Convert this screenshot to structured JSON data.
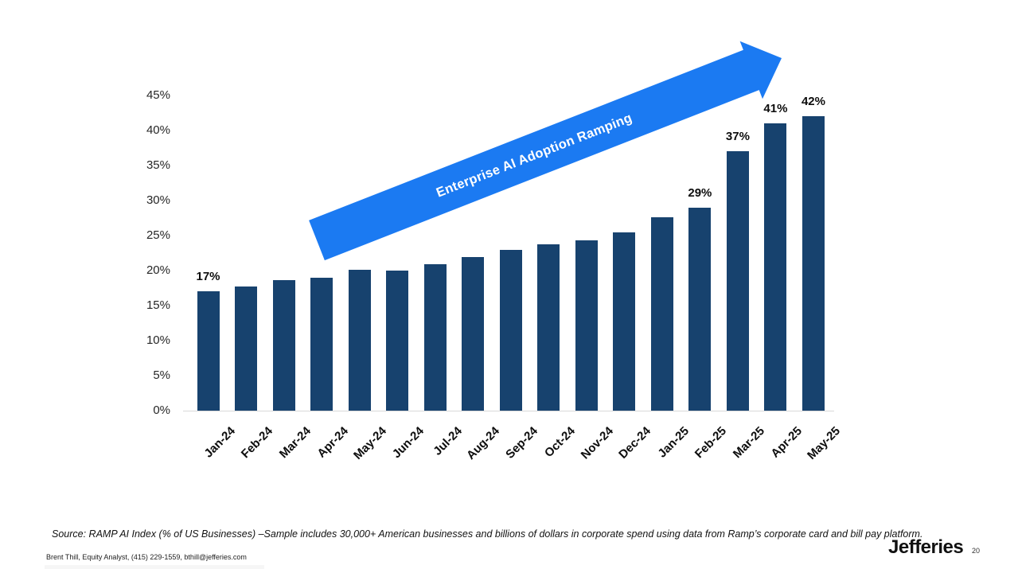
{
  "chart_data": {
    "type": "bar",
    "title": "",
    "xlabel": "",
    "ylabel": "",
    "categories": [
      "Jan-24",
      "Feb-24",
      "Mar-24",
      "Apr-24",
      "May-24",
      "Jun-24",
      "Jul-24",
      "Aug-24",
      "Sep-24",
      "Oct-24",
      "Nov-24",
      "Dec-24",
      "Jan-25",
      "Feb-25",
      "Mar-25",
      "Apr-25",
      "May-25"
    ],
    "values": [
      17,
      17.7,
      18.6,
      19,
      20.1,
      20,
      20.9,
      21.9,
      23,
      23.8,
      24.3,
      25.5,
      27.6,
      29,
      37,
      41,
      42
    ],
    "bar_labels": {
      "0": "17%",
      "13": "29%",
      "14": "37%",
      "15": "41%",
      "16": "42%"
    },
    "y_ticks": [
      "0%",
      "5%",
      "10%",
      "15%",
      "20%",
      "25%",
      "30%",
      "35%",
      "40%",
      "45%"
    ],
    "ylim": [
      0,
      45
    ],
    "grid": "off",
    "legend": "none",
    "bar_color": "#17426E",
    "annotation": {
      "text": "Enterprise AI Adoption Ramping",
      "color": "#1B7AF2",
      "text_color": "#FFFFFF",
      "shape": "up-right-block-arrow"
    }
  },
  "footer": {
    "source": "Source: RAMP AI Index (% of US Businesses) –Sample includes 30,000+ American businesses and billions of dollars in corporate spend using data from Ramp’s corporate card and bill pay platform.",
    "analyst": "Brent Thill, Equity Analyst, (415) 229-1559, bthill@jefferies.com",
    "brand": "Jefferies",
    "page_number": "20"
  }
}
